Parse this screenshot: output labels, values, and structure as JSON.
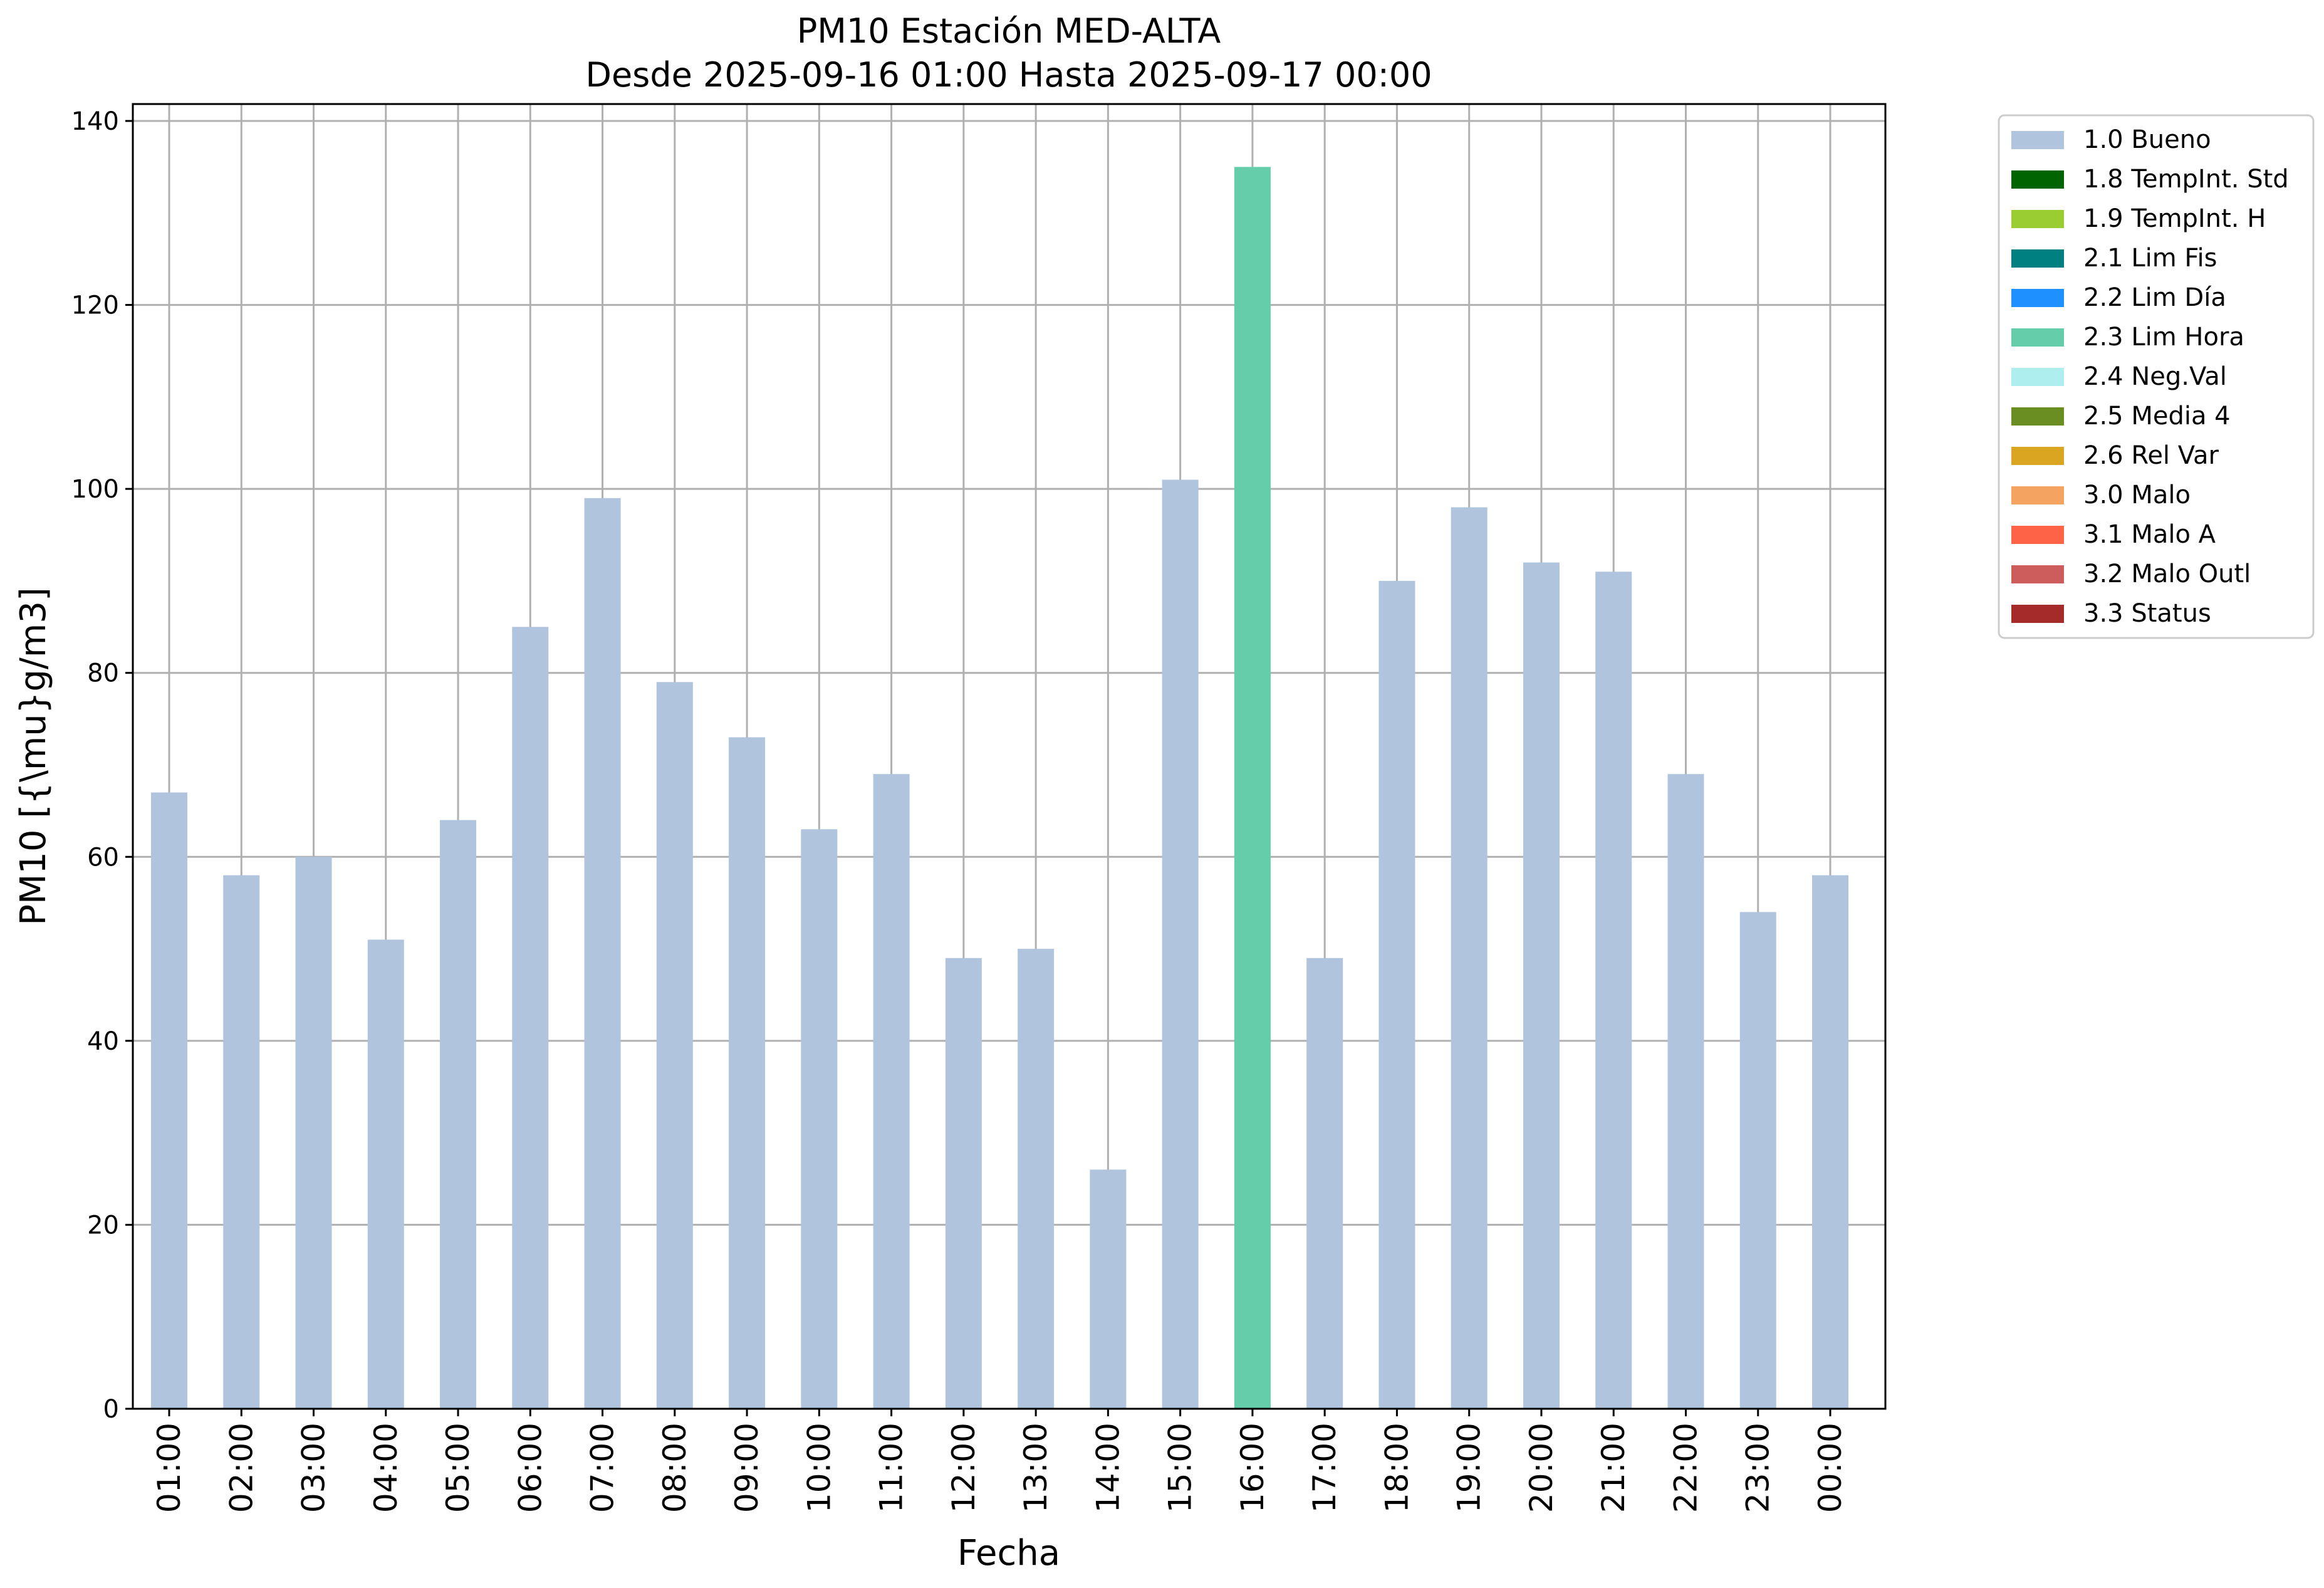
{
  "chart_data": {
    "type": "bar",
    "title": "PM10 Estación MED-ALTA",
    "subtitle": "Desde 2025-09-16 01:00 Hasta 2025-09-17 00:00",
    "xlabel": "Fecha",
    "ylabel": "PM10 [{\\mu}g/m3]",
    "ylim": [
      0,
      142
    ],
    "yticks": [
      0,
      20,
      40,
      60,
      80,
      100,
      120,
      140
    ],
    "grid": true,
    "legend_position": "outside-top-right",
    "categories": [
      "01:00",
      "02:00",
      "03:00",
      "04:00",
      "05:00",
      "06:00",
      "07:00",
      "08:00",
      "09:00",
      "10:00",
      "11:00",
      "12:00",
      "13:00",
      "14:00",
      "15:00",
      "16:00",
      "17:00",
      "18:00",
      "19:00",
      "20:00",
      "21:00",
      "22:00",
      "23:00",
      "00:00"
    ],
    "values": [
      67,
      58,
      60,
      51,
      64,
      85,
      99,
      79,
      73,
      63,
      69,
      49,
      50,
      26,
      101,
      135,
      49,
      90,
      98,
      92,
      91,
      69,
      54,
      58
    ],
    "bar_flags": [
      "1.0 Bueno",
      "1.0 Bueno",
      "1.0 Bueno",
      "1.0 Bueno",
      "1.0 Bueno",
      "1.0 Bueno",
      "1.0 Bueno",
      "1.0 Bueno",
      "1.0 Bueno",
      "1.0 Bueno",
      "1.0 Bueno",
      "1.0 Bueno",
      "1.0 Bueno",
      "1.0 Bueno",
      "1.0 Bueno",
      "2.3 Lim Hora",
      "1.0 Bueno",
      "1.0 Bueno",
      "1.0 Bueno",
      "1.0 Bueno",
      "1.0 Bueno",
      "1.0 Bueno",
      "1.0 Bueno",
      "1.0 Bueno"
    ],
    "legend": [
      {
        "label": "1.0 Bueno",
        "color": "#b0c4de"
      },
      {
        "label": "1.8 TempInt. Std",
        "color": "#006400"
      },
      {
        "label": "1.9 TempInt. H",
        "color": "#9acd32"
      },
      {
        "label": "2.1 Lim Fis",
        "color": "#008080"
      },
      {
        "label": "2.2 Lim Día",
        "color": "#1e90ff"
      },
      {
        "label": "2.3 Lim Hora",
        "color": "#66cdaa"
      },
      {
        "label": "2.4 Neg.Val",
        "color": "#afeeee"
      },
      {
        "label": "2.5 Media 4",
        "color": "#6b8e23"
      },
      {
        "label": "2.6 Rel Var",
        "color": "#daa520"
      },
      {
        "label": "3.0 Malo",
        "color": "#f4a460"
      },
      {
        "label": "3.1 Malo A",
        "color": "#ff6347"
      },
      {
        "label": "3.2 Malo Outl",
        "color": "#cd5c5c"
      },
      {
        "label": "3.3 Status",
        "color": "#a52a2a"
      }
    ]
  }
}
